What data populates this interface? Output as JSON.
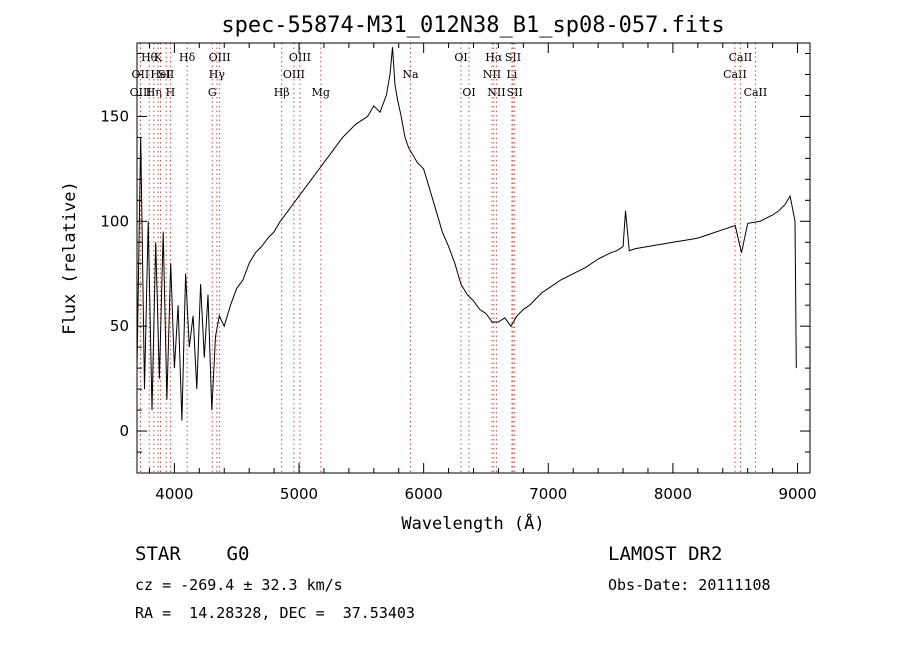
{
  "chart_data": {
    "type": "line",
    "title": "spec-55874-M31_012N38_B1_sp08-057.fits",
    "xlabel": "Wavelength (Å)",
    "ylabel": "Flux (relative)",
    "xlim": [
      3700,
      9100
    ],
    "ylim": [
      -20,
      185
    ],
    "xticks": [
      4000,
      5000,
      6000,
      7000,
      8000,
      9000
    ],
    "yticks": [
      0,
      50,
      100,
      150
    ],
    "grid": false,
    "series": [
      {
        "x": [
          3700,
          3730,
          3760,
          3790,
          3820,
          3850,
          3880,
          3910,
          3940,
          3970,
          4000,
          4030,
          4060,
          4090,
          4120,
          4150,
          4180,
          4210,
          4240,
          4270,
          4300,
          4330,
          4360,
          4400,
          4450,
          4500,
          4550,
          4600,
          4650,
          4700,
          4750,
          4800,
          4850,
          4900,
          4950,
          5000,
          5050,
          5100,
          5150,
          5200,
          5250,
          5300,
          5350,
          5400,
          5450,
          5500,
          5550,
          5600,
          5650,
          5700,
          5730,
          5750,
          5770,
          5790,
          5820,
          5850,
          5880,
          5910,
          5950,
          6000,
          6050,
          6100,
          6150,
          6200,
          6250,
          6300,
          6350,
          6400,
          6450,
          6500,
          6550,
          6600,
          6650,
          6700,
          6750,
          6800,
          6850,
          6900,
          6950,
          7000,
          7100,
          7200,
          7300,
          7400,
          7500,
          7550,
          7600,
          7620,
          7650,
          7700,
          7800,
          7900,
          8000,
          8100,
          8200,
          8300,
          8400,
          8500,
          8550,
          8600,
          8700,
          8800,
          8850,
          8900,
          8940,
          8960,
          8980,
          8990
        ],
        "y": [
          30,
          140,
          20,
          100,
          10,
          90,
          25,
          95,
          15,
          80,
          30,
          60,
          5,
          75,
          40,
          55,
          20,
          70,
          35,
          65,
          10,
          45,
          55,
          50,
          60,
          68,
          72,
          80,
          85,
          88,
          92,
          95,
          100,
          104,
          108,
          112,
          116,
          120,
          124,
          128,
          132,
          136,
          140,
          143,
          146,
          148,
          150,
          155,
          152,
          160,
          170,
          183,
          165,
          158,
          150,
          140,
          135,
          132,
          128,
          125,
          115,
          105,
          95,
          88,
          80,
          70,
          65,
          62,
          58,
          56,
          52,
          52,
          54,
          50,
          55,
          58,
          60,
          63,
          66,
          68,
          72,
          75,
          78,
          82,
          85,
          86,
          88,
          105,
          86,
          87,
          88,
          89,
          90,
          91,
          92,
          94,
          96,
          98,
          85,
          99,
          100,
          103,
          105,
          108,
          112,
          106,
          100,
          30
        ]
      }
    ],
    "line_markers": [
      {
        "wl": 3727,
        "label": "OII",
        "row": 1
      },
      {
        "wl": 3729,
        "label": "OIII",
        "row": 2
      },
      {
        "wl": 3798,
        "label": "Hθ",
        "row": 0
      },
      {
        "wl": 3835,
        "label": "Hη",
        "row": 2
      },
      {
        "wl": 3869,
        "label": "K",
        "row": 0
      },
      {
        "wl": 3889,
        "label": "HeI",
        "row": 1
      },
      {
        "wl": 3934,
        "label": "SII",
        "row": 1
      },
      {
        "wl": 3968,
        "label": "H",
        "row": 2
      },
      {
        "wl": 4102,
        "label": "Hδ",
        "row": 0
      },
      {
        "wl": 4304,
        "label": "G",
        "row": 2
      },
      {
        "wl": 4341,
        "label": "Hγ",
        "row": 1
      },
      {
        "wl": 4363,
        "label": "OIII",
        "row": 0
      },
      {
        "wl": 4861,
        "label": "Hβ",
        "row": 2
      },
      {
        "wl": 4959,
        "label": "OIII",
        "row": 1
      },
      {
        "wl": 5007,
        "label": "OIII",
        "row": 0
      },
      {
        "wl": 5175,
        "label": "Mg",
        "row": 2
      },
      {
        "wl": 5894,
        "label": "Na",
        "row": 1
      },
      {
        "wl": 6300,
        "label": "OI",
        "row": 0
      },
      {
        "wl": 6364,
        "label": "OI",
        "row": 2
      },
      {
        "wl": 6548,
        "label": "NII",
        "row": 1
      },
      {
        "wl": 6563,
        "label": "Hα",
        "row": 0
      },
      {
        "wl": 6584,
        "label": "NII",
        "row": 2
      },
      {
        "wl": 6708,
        "label": "Li",
        "row": 1
      },
      {
        "wl": 6717,
        "label": "SII",
        "row": 0
      },
      {
        "wl": 6731,
        "label": "SII",
        "row": 2
      },
      {
        "wl": 8498,
        "label": "CaII",
        "row": 1
      },
      {
        "wl": 8542,
        "label": "CaII",
        "row": 0
      },
      {
        "wl": 8662,
        "label": "CaII",
        "row": 2
      }
    ]
  },
  "info": {
    "classification": "STAR    G0",
    "survey": "LAMOST DR2",
    "redshift": "cz = -269.4 ± 32.3 km/s",
    "obs_date": "Obs-Date: 20111108",
    "coords": "RA =  14.28328, DEC =  37.53403"
  },
  "colors": {
    "spectrum": "#000000",
    "marker_line": "#c0504d",
    "axis": "#000000"
  }
}
